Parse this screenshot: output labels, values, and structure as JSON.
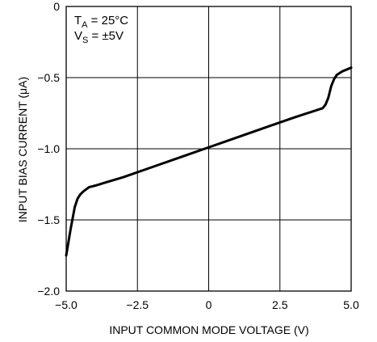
{
  "chart_data": {
    "type": "line",
    "title": "",
    "xlabel": "INPUT COMMON MODE VOLTAGE (V)",
    "ylabel": "INPUT BIAS CURRENT (μA)",
    "xlim": [
      -5.0,
      5.0
    ],
    "ylim": [
      -2.0,
      0
    ],
    "x_ticks": [
      -5.0,
      -2.5,
      0,
      2.5,
      5.0
    ],
    "x_tick_labels": [
      "−5.0",
      "−2.5",
      "0",
      "2.5",
      "5.0"
    ],
    "y_ticks": [
      0,
      -0.5,
      -1.0,
      -1.5,
      -2.0
    ],
    "y_tick_labels": [
      "0",
      "−0.5",
      "−1.0",
      "−1.5",
      "−2.0"
    ],
    "grid": true,
    "annotations": [
      {
        "main": "T",
        "sub": "A",
        "rest": " = 25°C"
      },
      {
        "main": "V",
        "sub": "S",
        "rest": " = ±5V"
      }
    ],
    "series": [
      {
        "x": [
          -5.0,
          -4.85,
          -4.7,
          -4.6,
          -4.5,
          -4.4,
          -4.3,
          -4.2,
          -4.0,
          -3.0,
          -2.0,
          -1.0,
          0.0,
          1.0,
          2.0,
          3.0,
          4.0,
          4.1,
          4.2,
          4.3,
          4.4,
          4.5,
          4.7,
          5.0
        ],
        "y": [
          -1.75,
          -1.57,
          -1.41,
          -1.35,
          -1.32,
          -1.3,
          -1.285,
          -1.27,
          -1.26,
          -1.2,
          -1.13,
          -1.06,
          -0.99,
          -0.92,
          -0.85,
          -0.78,
          -0.715,
          -0.69,
          -0.64,
          -0.56,
          -0.51,
          -0.48,
          -0.455,
          -0.43
        ]
      }
    ]
  }
}
